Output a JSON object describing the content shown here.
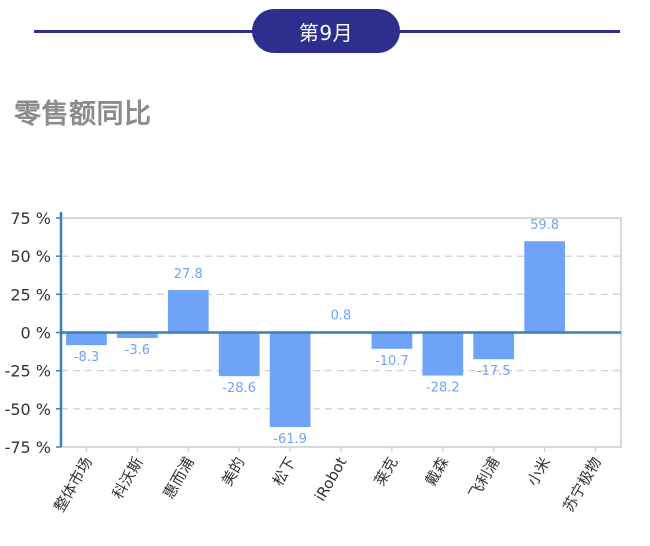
{
  "header": {
    "month": "第9月"
  },
  "section": {
    "title": "零售额同比"
  },
  "chart_data": {
    "type": "bar",
    "title": "",
    "xlabel": "",
    "ylabel": "",
    "categories": [
      "整体市场",
      "科沃斯",
      "惠而浦",
      "美的",
      "松下",
      "iRobot",
      "莱克",
      "戴森",
      "飞利浦",
      "小米",
      "苏宁极物"
    ],
    "values": [
      -8.3,
      -3.6,
      27.8,
      -28.6,
      -61.9,
      0.8,
      -10.7,
      -28.2,
      -17.5,
      59.8,
      null
    ],
    "data_labels": [
      "-8.3",
      "-3.6",
      "27.8",
      "-28.6",
      "-61.9",
      "0.8",
      "-10.7",
      "-28.2",
      "-17.5",
      "59.8",
      ""
    ],
    "ylim": [
      -75,
      75
    ],
    "yticks": [
      75,
      50,
      25,
      0,
      -25,
      -50,
      -75
    ],
    "ytick_labels": [
      "75 %",
      "50 %",
      "25 %",
      "0 %",
      "-25 %",
      "-50 %",
      "-75 %"
    ],
    "grid": true,
    "legend": "none",
    "colors": {
      "bar": "#6fa3f7",
      "label": "#6fa3f7",
      "axis": "#3a7fb5",
      "grid": "#cccccc",
      "border": "#cccccc"
    }
  }
}
